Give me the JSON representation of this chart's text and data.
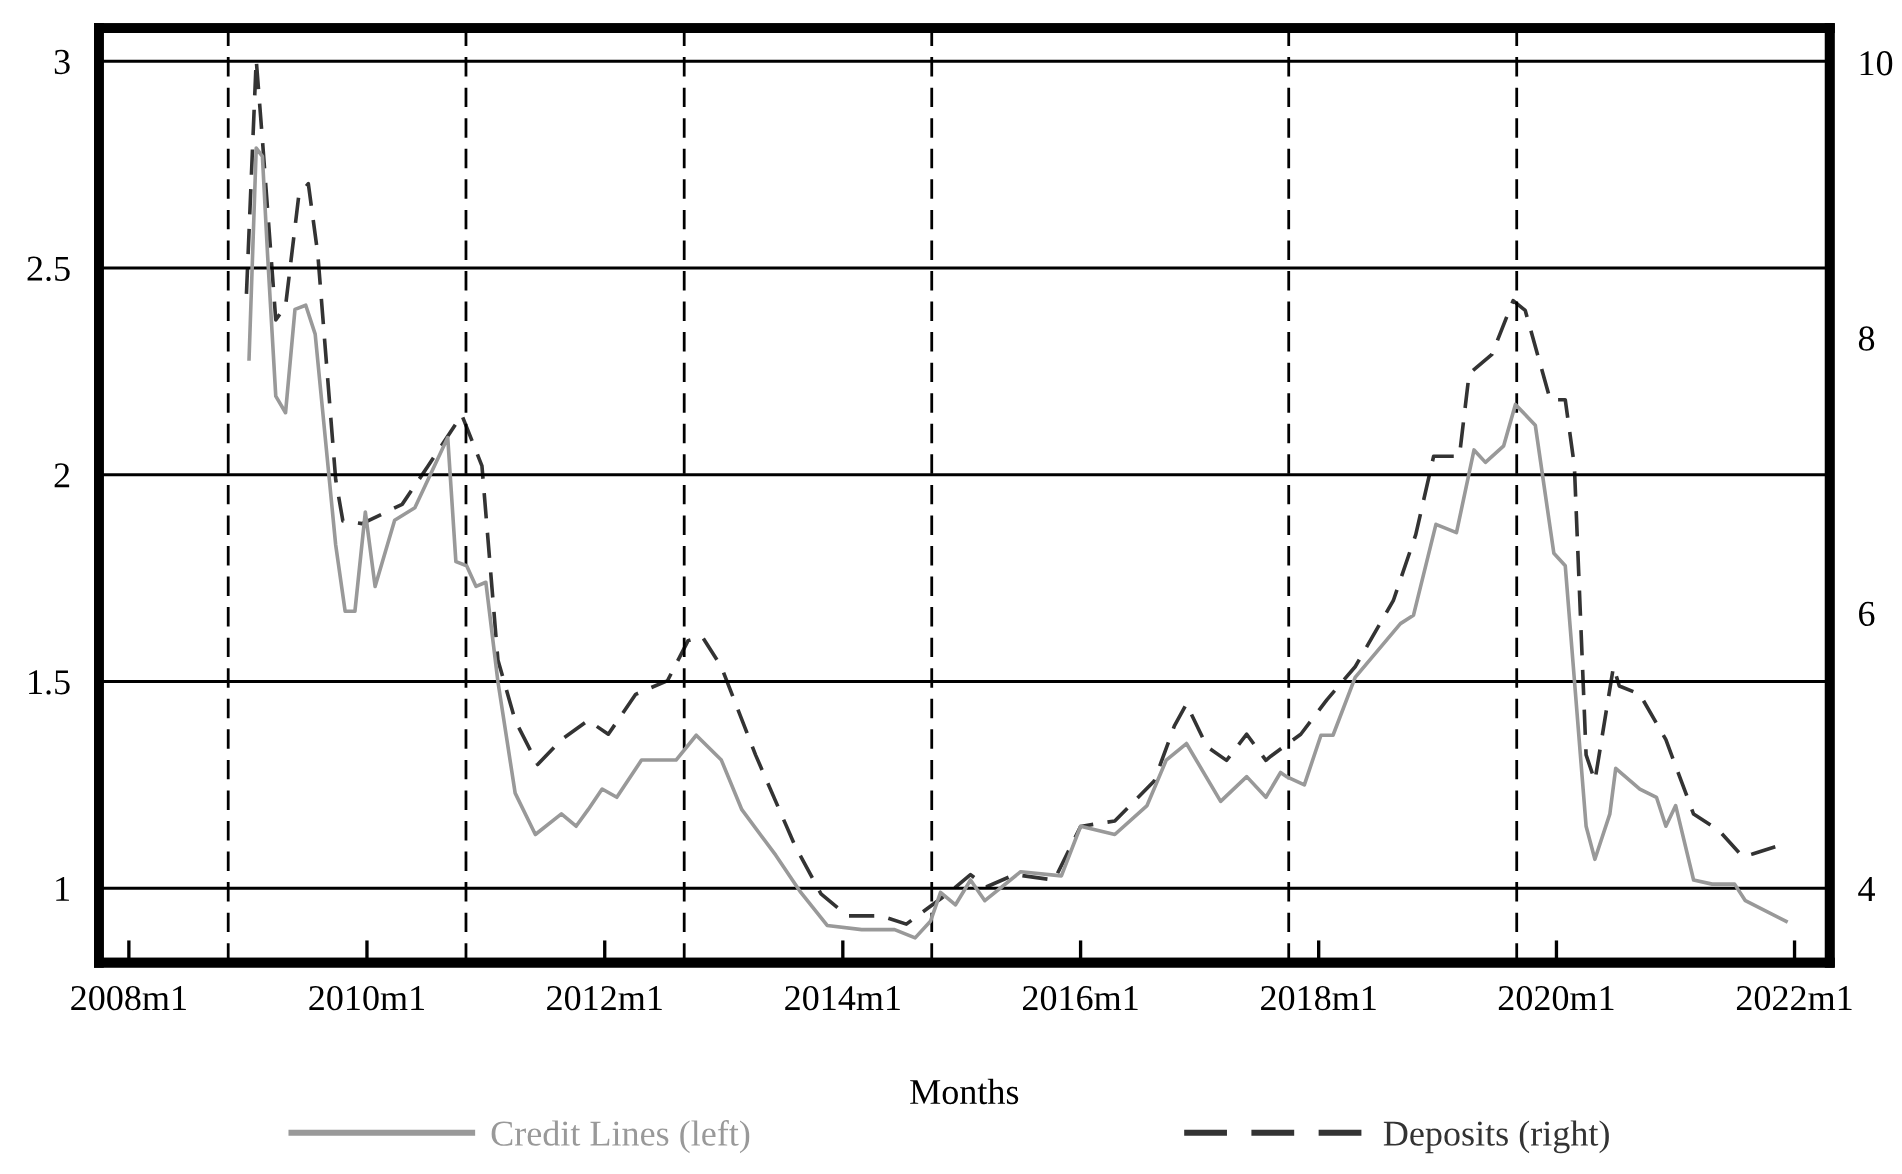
{
  "chart_data": {
    "type": "line",
    "xlabel": "Months",
    "x": [
      "2009-01-04",
      "2009-01-26",
      "2009-02-14",
      "2009-03-02",
      "2009-03-27",
      "2009-04-26",
      "2009-05-25",
      "2009-06-27",
      "2009-07-26",
      "2009-09-27",
      "2009-10-26",
      "2009-11-25",
      "2009-12-27",
      "2010-01-26",
      "2010-03-27",
      "2010-05-28",
      "2010-09-06",
      "2010-10-01",
      "2010-11-03",
      "2010-12-02",
      "2011-01-01",
      "2011-02-07",
      "2011-04-01",
      "2011-06-02",
      "2011-08-21",
      "2011-10-05",
      "2011-11-11",
      "2011-12-24",
      "2012-02-07",
      "2012-04-23",
      "2012-08-07",
      "2012-10-08",
      "2012-12-24",
      "2013-02-25",
      "2013-06-09",
      "2013-08-25",
      "2013-11-14",
      "2014-02-28",
      "2014-06-09",
      "2014-08-11",
      "2014-09-27",
      "2014-10-28",
      "2014-12-13",
      "2015-01-28",
      "2015-03-13",
      "2015-07-01",
      "2015-11-03",
      "2016-01-01",
      "2016-04-15",
      "2016-07-23",
      "2016-09-20",
      "2016-11-21",
      "2017-03-06",
      "2017-05-25",
      "2017-07-23",
      "2017-09-06",
      "2017-09-24",
      "2017-11-18",
      "2018-01-08",
      "2018-02-14",
      "2018-04-23",
      "2018-09-09",
      "2018-10-19",
      "2018-12-27",
      "2019-02-28",
      "2019-04-23",
      "2019-05-28",
      "2019-07-23",
      "2019-08-28",
      "2019-10-28",
      "2019-12-24",
      "2020-01-28",
      "2020-04-01",
      "2020-04-28",
      "2020-06-13",
      "2020-07-01",
      "2020-09-13",
      "2020-11-03",
      "2020-12-02",
      "2021-01-01",
      "2021-02-25",
      "2021-04-23",
      "2021-07-01",
      "2021-08-03",
      "2021-12-06"
    ],
    "series": [
      {
        "name": "Credit Lines (left)",
        "color": "#999999",
        "line_style": "solid",
        "values": [
          2.28,
          2.79,
          2.77,
          2.53,
          2.19,
          2.15,
          2.4,
          2.41,
          2.34,
          1.83,
          1.67,
          1.67,
          1.91,
          1.73,
          1.89,
          1.92,
          2.09,
          1.79,
          1.78,
          1.73,
          1.74,
          1.5,
          1.23,
          1.13,
          1.18,
          1.15,
          1.19,
          1.24,
          1.22,
          1.31,
          1.31,
          1.37,
          1.31,
          1.19,
          1.08,
          0.99,
          0.91,
          0.9,
          0.9,
          0.88,
          0.92,
          0.99,
          0.96,
          1.02,
          0.97,
          1.04,
          1.03,
          1.15,
          1.13,
          1.2,
          1.31,
          1.35,
          1.21,
          1.27,
          1.22,
          1.28,
          1.27,
          1.25,
          1.37,
          1.37,
          1.51,
          1.64,
          1.66,
          1.88,
          1.86,
          2.06,
          2.03,
          2.07,
          2.17,
          2.12,
          1.81,
          1.78,
          1.15,
          1.07,
          1.18,
          1.29,
          1.24,
          1.22,
          1.15,
          1.2,
          1.02,
          1.01,
          1.01,
          0.97,
          0.92
        ]
      },
      {
        "name": "Deposits (right)",
        "color": "#333333",
        "line_style": "dashed",
        "axis": "y2",
        "x": [
          "2008-12-27",
          "2009-01-26",
          "2009-02-14",
          "2009-03-27",
          "2009-04-26",
          "2009-06-06",
          "2009-07-05",
          "2009-08-03",
          "2009-09-27",
          "2009-10-19",
          "2009-12-17",
          "2010-04-19",
          "2010-07-08",
          "2010-10-19",
          "2010-12-20",
          "2011-02-07",
          "2011-04-01",
          "2011-06-09",
          "2011-08-21",
          "2011-11-11",
          "2012-01-12",
          "2012-04-05",
          "2012-07-12",
          "2012-09-13",
          "2012-10-26",
          "2012-12-24",
          "2013-04-08",
          "2013-08-07",
          "2013-10-26",
          "2014-01-15",
          "2014-04-28",
          "2014-07-15",
          "2014-09-27",
          "2014-11-18",
          "2015-01-28",
          "2015-03-17",
          "2015-06-13",
          "2015-10-12",
          "2016-01-01",
          "2016-04-15",
          "2016-08-14",
          "2016-10-15",
          "2016-11-21",
          "2017-01-23",
          "2017-03-24",
          "2017-05-25",
          "2017-07-23",
          "2017-08-07",
          "2017-11-07",
          "2018-01-26",
          "2018-04-23",
          "2018-08-18",
          "2018-10-26",
          "2018-12-20",
          "2019-03-09",
          "2019-04-08",
          "2019-06-17",
          "2019-08-21",
          "2019-09-27",
          "2019-12-13",
          "2020-01-28",
          "2020-02-25",
          "2020-04-01",
          "2020-04-28",
          "2020-06-24",
          "2020-07-12",
          "2020-09-13",
          "2020-12-02",
          "2021-02-25",
          "2021-05-14",
          "2021-07-26",
          "2021-08-25",
          "2021-11-14"
        ],
        "values": [
          8.32,
          10.02,
          9.44,
          8.13,
          8.23,
          9.04,
          9.12,
          8.61,
          6.97,
          6.67,
          6.65,
          6.79,
          7.07,
          7.44,
          7.07,
          5.66,
          5.22,
          4.9,
          5.08,
          5.22,
          5.12,
          5.41,
          5.51,
          5.8,
          5.83,
          5.61,
          4.97,
          4.31,
          3.96,
          3.8,
          3.8,
          3.74,
          3.87,
          3.96,
          4.1,
          4.01,
          4.1,
          4.06,
          4.45,
          4.49,
          4.78,
          5.18,
          5.34,
          5.03,
          4.93,
          5.12,
          4.93,
          4.96,
          5.12,
          5.37,
          5.61,
          6.09,
          6.57,
          7.14,
          7.14,
          7.74,
          7.88,
          8.27,
          8.2,
          7.55,
          7.55,
          7.07,
          4.97,
          4.78,
          5.61,
          5.47,
          5.41,
          5.08,
          4.54,
          4.42,
          4.23,
          4.25,
          4.31
        ]
      }
    ],
    "xlim": [
      "2007-10-01",
      "2022-04-19"
    ],
    "xticks": [
      {
        "value": "2008-01",
        "label": "2008m1"
      },
      {
        "value": "2010-01",
        "label": "2010m1"
      },
      {
        "value": "2012-01",
        "label": "2012m1"
      },
      {
        "value": "2014-01",
        "label": "2014m1"
      },
      {
        "value": "2016-01",
        "label": "2016m1"
      },
      {
        "value": "2018-01",
        "label": "2018m1"
      },
      {
        "value": "2020-01",
        "label": "2020m1"
      },
      {
        "value": "2022-01",
        "label": "2022m1"
      }
    ],
    "ylim": [
      0.82,
      3.08
    ],
    "yticks": [
      1,
      1.5,
      2,
      2.5,
      3
    ],
    "y2lim": [
      3.46,
      10.25
    ],
    "y2ticks": [
      4,
      6,
      8,
      10
    ],
    "grid": "y",
    "legend": "bottom",
    "ref_lines": [
      {
        "axis": "x",
        "value": "2008-11",
        "color": "#000000",
        "line_style": "dashed"
      },
      {
        "axis": "x",
        "value": "2010-11",
        "color": "#000000",
        "line_style": "dashed"
      },
      {
        "axis": "x",
        "value": "2012-09",
        "color": "#000000",
        "line_style": "dashed"
      },
      {
        "axis": "x",
        "value": "2014-10",
        "color": "#000000",
        "line_style": "dashed"
      },
      {
        "axis": "x",
        "value": "2017-10",
        "color": "#000000",
        "line_style": "dashed"
      },
      {
        "axis": "x",
        "value": "2019-09",
        "color": "#000000",
        "line_style": "dashed"
      }
    ]
  }
}
